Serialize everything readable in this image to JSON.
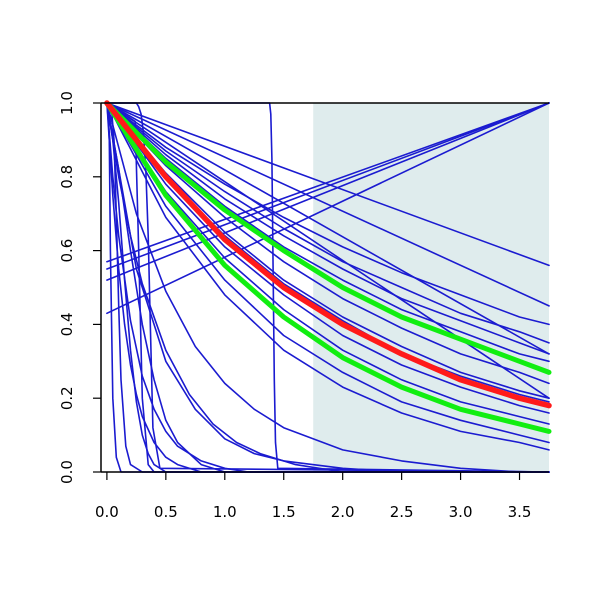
{
  "chart_data": {
    "type": "line",
    "title": "",
    "xlabel": "",
    "ylabel": "",
    "xlim": [
      -0.05,
      3.75
    ],
    "ylim": [
      0.0,
      1.0
    ],
    "xticks": [
      0.0,
      0.5,
      1.0,
      1.5,
      2.0,
      2.5,
      3.0,
      3.5
    ],
    "xtick_labels": [
      "0.0",
      "0.5",
      "1.0",
      "1.5",
      "2.0",
      "2.5",
      "3.0",
      "3.5"
    ],
    "yticks": [
      0.0,
      0.2,
      0.4,
      0.6,
      0.8,
      1.0
    ],
    "ytick_labels": [
      "0.0",
      "0.2",
      "0.4",
      "0.6",
      "0.8",
      "1.0"
    ],
    "grid": false,
    "legend": "none",
    "shaded_region": {
      "x": [
        1.75,
        3.75
      ],
      "y": [
        0.0,
        1.0
      ],
      "color": "#dfeced"
    },
    "colors": {
      "ensemble": "#1b1bd0",
      "central": "#ff1a1a",
      "bounds": "#11ee11",
      "axis": "#000000"
    },
    "series": [
      {
        "group": "ensemble",
        "x": [
          0,
          3.75
        ],
        "y": [
          1.0,
          0.2
        ]
      },
      {
        "group": "ensemble",
        "x": [
          0,
          3.75
        ],
        "y": [
          1.0,
          0.32
        ]
      },
      {
        "group": "ensemble",
        "x": [
          0,
          3.75
        ],
        "y": [
          1.0,
          0.45
        ]
      },
      {
        "group": "ensemble",
        "x": [
          0,
          3.75
        ],
        "y": [
          1.0,
          0.56
        ]
      },
      {
        "group": "ensemble",
        "x": [
          0,
          3.75
        ],
        "y": [
          0.57,
          1.0
        ]
      },
      {
        "group": "ensemble",
        "x": [
          0,
          3.75
        ],
        "y": [
          0.55,
          1.0
        ]
      },
      {
        "group": "ensemble",
        "x": [
          0,
          3.75
        ],
        "y": [
          0.52,
          1.0
        ]
      },
      {
        "group": "ensemble",
        "x": [
          0,
          3.75
        ],
        "y": [
          0.43,
          1.0
        ]
      },
      {
        "group": "ensemble",
        "x": [
          0,
          0.25,
          0.27,
          0.29,
          0.31,
          0.33,
          0.35,
          0.37,
          0.39,
          0.45,
          3.75
        ],
        "y": [
          1.0,
          1.0,
          0.99,
          0.97,
          0.92,
          0.82,
          0.64,
          0.38,
          0.12,
          0.01,
          0.0
        ]
      },
      {
        "group": "ensemble",
        "x": [
          0,
          0.02,
          0.04,
          0.06,
          0.08,
          0.1,
          0.12,
          0.16,
          0.2,
          0.3,
          3.75
        ],
        "y": [
          1.0,
          1.0,
          0.98,
          0.9,
          0.7,
          0.45,
          0.25,
          0.07,
          0.02,
          0.0,
          0.0
        ]
      },
      {
        "group": "ensemble",
        "x": [
          0,
          1.38,
          1.39,
          1.4,
          1.41,
          1.42,
          1.43,
          1.45,
          3.75
        ],
        "y": [
          1.0,
          1.0,
          0.97,
          0.85,
          0.55,
          0.25,
          0.08,
          0.01,
          0.0
        ]
      },
      {
        "group": "ensemble",
        "x": [
          0,
          0.01,
          0.02,
          0.03,
          0.05,
          0.08,
          0.12,
          0.2,
          3.75
        ],
        "y": [
          1.0,
          0.98,
          0.9,
          0.6,
          0.2,
          0.04,
          0.0,
          0.0,
          0.0
        ]
      },
      {
        "group": "ensemble",
        "x": [
          0,
          0.24,
          0.27,
          0.3,
          0.35,
          0.4,
          0.5,
          3.75
        ],
        "y": [
          1.0,
          0.95,
          0.6,
          0.2,
          0.02,
          0.0,
          0.0,
          0.0
        ]
      },
      {
        "group": "ensemble",
        "x": [
          0,
          0.05,
          0.1,
          0.15,
          0.2,
          0.25,
          0.3,
          0.35,
          0.4,
          0.5,
          0.6,
          3.75
        ],
        "y": [
          1.0,
          0.9,
          0.73,
          0.52,
          0.33,
          0.19,
          0.1,
          0.05,
          0.02,
          0.0,
          0.0,
          0.0
        ]
      },
      {
        "group": "ensemble",
        "x": [
          0,
          0.1,
          0.2,
          0.3,
          0.4,
          0.5,
          0.6,
          0.8,
          1.0,
          3.75
        ],
        "y": [
          1.0,
          0.82,
          0.6,
          0.4,
          0.25,
          0.14,
          0.08,
          0.02,
          0.0,
          0.0
        ]
      },
      {
        "group": "ensemble",
        "x": [
          0,
          0.05,
          0.1,
          0.15,
          0.2,
          0.25,
          0.3,
          0.4,
          0.5,
          0.6,
          0.8,
          3.75
        ],
        "y": [
          1.0,
          0.75,
          0.55,
          0.4,
          0.29,
          0.21,
          0.15,
          0.08,
          0.04,
          0.02,
          0.0,
          0.0
        ]
      },
      {
        "group": "ensemble",
        "x": [
          0,
          0.05,
          0.1,
          0.2,
          0.3,
          0.4,
          0.5,
          0.6,
          0.8,
          1.0,
          1.2,
          3.75
        ],
        "y": [
          1.0,
          0.8,
          0.64,
          0.41,
          0.26,
          0.17,
          0.11,
          0.07,
          0.03,
          0.01,
          0.0,
          0.0
        ]
      },
      {
        "group": "ensemble",
        "x": [
          0,
          0.1,
          0.2,
          0.3,
          0.5,
          0.7,
          0.9,
          1.1,
          1.3,
          1.6,
          2.0,
          3.75
        ],
        "y": [
          1.0,
          0.8,
          0.64,
          0.51,
          0.33,
          0.21,
          0.13,
          0.08,
          0.05,
          0.02,
          0.0,
          0.0
        ]
      },
      {
        "group": "ensemble",
        "x": [
          0,
          0.25,
          0.5,
          0.75,
          1.0,
          1.25,
          1.5,
          2.0,
          2.5,
          3.0,
          3.75
        ],
        "y": [
          1.0,
          0.55,
          0.3,
          0.17,
          0.09,
          0.05,
          0.03,
          0.01,
          0.0,
          0.0,
          0.0
        ]
      },
      {
        "group": "ensemble",
        "x": [
          0,
          0.25,
          0.5,
          0.75,
          1.0,
          1.25,
          1.5,
          2.0,
          2.5,
          3.0,
          3.5,
          3.75
        ],
        "y": [
          1.0,
          0.7,
          0.49,
          0.34,
          0.24,
          0.17,
          0.12,
          0.06,
          0.03,
          0.01,
          0.0,
          0.0
        ]
      },
      {
        "group": "ensemble",
        "x": [
          0,
          0.5,
          1.0,
          1.5,
          2.0,
          2.5,
          3.0,
          3.5,
          3.75
        ],
        "y": [
          1.0,
          0.8,
          0.64,
          0.51,
          0.41,
          0.32,
          0.26,
          0.21,
          0.19
        ]
      },
      {
        "group": "ensemble",
        "x": [
          0,
          0.5,
          1.0,
          1.5,
          2.0,
          2.5,
          3.0,
          3.5,
          3.75
        ],
        "y": [
          1.0,
          0.85,
          0.72,
          0.61,
          0.52,
          0.44,
          0.38,
          0.32,
          0.3
        ]
      },
      {
        "group": "ensemble",
        "x": [
          0,
          0.5,
          1.0,
          1.5,
          2.0,
          2.5,
          3.0,
          3.5,
          3.75
        ],
        "y": [
          1.0,
          0.88,
          0.78,
          0.69,
          0.61,
          0.54,
          0.48,
          0.42,
          0.4
        ]
      },
      {
        "group": "ensemble",
        "x": [
          0,
          0.5,
          1.0,
          1.5,
          2.0,
          2.5,
          3.0,
          3.5,
          3.75
        ],
        "y": [
          1.0,
          0.87,
          0.76,
          0.66,
          0.57,
          0.5,
          0.43,
          0.38,
          0.35
        ]
      },
      {
        "group": "ensemble",
        "x": [
          0,
          0.5,
          1.0,
          1.5,
          2.0,
          2.5,
          3.0,
          3.5,
          3.75
        ],
        "y": [
          1.0,
          0.83,
          0.69,
          0.57,
          0.47,
          0.39,
          0.32,
          0.27,
          0.24
        ]
      },
      {
        "group": "ensemble",
        "x": [
          0,
          0.5,
          1.0,
          1.5,
          2.0,
          2.5,
          3.0,
          3.5,
          3.75
        ],
        "y": [
          1.0,
          0.81,
          0.65,
          0.52,
          0.42,
          0.34,
          0.27,
          0.22,
          0.2
        ]
      },
      {
        "group": "ensemble",
        "x": [
          0,
          0.5,
          1.0,
          1.5,
          2.0,
          2.5,
          3.0,
          3.5,
          3.75
        ],
        "y": [
          1.0,
          0.78,
          0.61,
          0.48,
          0.37,
          0.29,
          0.23,
          0.18,
          0.16
        ]
      },
      {
        "group": "ensemble",
        "x": [
          0,
          0.5,
          1.0,
          1.5,
          2.0,
          2.5,
          3.0,
          3.5,
          3.75
        ],
        "y": [
          1.0,
          0.76,
          0.58,
          0.44,
          0.33,
          0.25,
          0.19,
          0.15,
          0.13
        ]
      },
      {
        "group": "ensemble",
        "x": [
          0,
          0.5,
          1.0,
          1.5,
          2.0,
          2.5,
          3.0,
          3.5,
          3.75
        ],
        "y": [
          1.0,
          0.72,
          0.52,
          0.37,
          0.27,
          0.19,
          0.14,
          0.1,
          0.08
        ]
      },
      {
        "group": "ensemble",
        "x": [
          0,
          0.5,
          1.0,
          1.5,
          2.0,
          2.5,
          3.0,
          3.5,
          3.75
        ],
        "y": [
          1.0,
          0.69,
          0.48,
          0.33,
          0.23,
          0.16,
          0.11,
          0.08,
          0.06
        ]
      },
      {
        "group": "ensemble",
        "x": [
          0,
          0.5,
          1.0,
          1.5,
          2.0,
          2.5,
          3.0,
          3.5,
          3.75
        ],
        "y": [
          1.0,
          0.86,
          0.74,
          0.64,
          0.55,
          0.47,
          0.41,
          0.35,
          0.32
        ]
      },
      {
        "group": "ensemble",
        "x": [
          0,
          0.5,
          1.0,
          1.5,
          2.0,
          2.5,
          3.0,
          3.5,
          3.75
        ],
        "y": [
          1.0,
          0.84,
          0.71,
          0.6,
          0.5,
          0.42,
          0.36,
          0.3,
          0.27
        ]
      },
      {
        "group": "central",
        "x": [
          0,
          0.5,
          1.0,
          1.5,
          2.0,
          2.5,
          3.0,
          3.5,
          3.75
        ],
        "y": [
          1.0,
          0.8,
          0.63,
          0.5,
          0.4,
          0.32,
          0.25,
          0.2,
          0.18
        ]
      },
      {
        "group": "bounds",
        "x": [
          0,
          0.5,
          1.0,
          1.5,
          2.0,
          2.5,
          3.0,
          3.5,
          3.75
        ],
        "y": [
          1.0,
          0.84,
          0.71,
          0.6,
          0.5,
          0.42,
          0.36,
          0.3,
          0.27
        ]
      },
      {
        "group": "bounds",
        "x": [
          0,
          0.5,
          1.0,
          1.5,
          2.0,
          2.5,
          3.0,
          3.5,
          3.75
        ],
        "y": [
          1.0,
          0.75,
          0.56,
          0.42,
          0.31,
          0.23,
          0.17,
          0.13,
          0.11
        ]
      }
    ]
  }
}
